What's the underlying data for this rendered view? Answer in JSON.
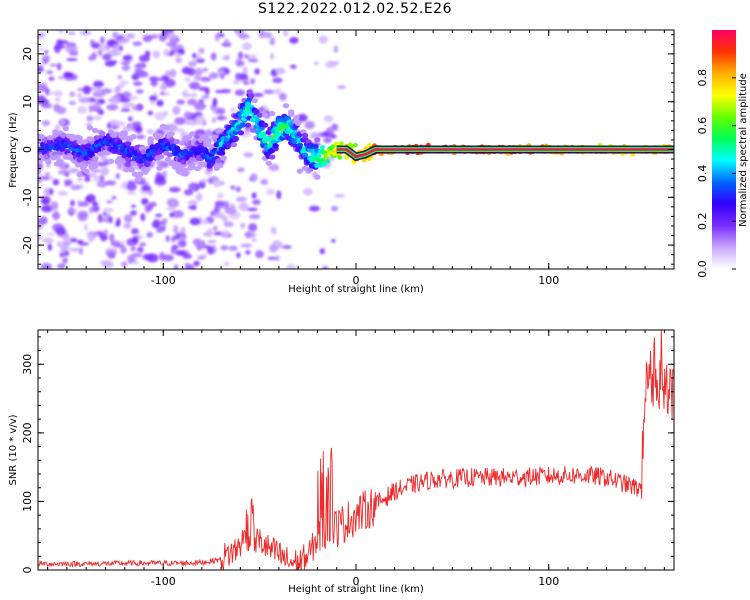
{
  "figure": {
    "title": "S122.2022.012.02.52.E26"
  },
  "chart_data": [
    {
      "type": "heatmap",
      "xlabel": "Height of straight line (km)",
      "ylabel": "Frequency (Hz)",
      "xlim": [
        -165,
        165
      ],
      "ylim": [
        -25,
        25
      ],
      "xticks": [
        -100,
        0,
        100
      ],
      "yticks": [
        -20,
        -10,
        0,
        10,
        20
      ],
      "colorbar": {
        "label": "Normalized spectral amplitude",
        "range": [
          0,
          1
        ],
        "ticks": [
          "0.0",
          "0.2",
          "0.4",
          "0.6",
          "0.8"
        ],
        "tick_values": [
          0.0,
          0.2,
          0.4,
          0.6,
          0.8
        ],
        "colors": [
          "#ffffff",
          "#c9a6ff",
          "#7a2cff",
          "#3300ff",
          "#0066ff",
          "#00ffff",
          "#00ff55",
          "#66ff00",
          "#ffff00",
          "#ffb000",
          "#ff3300",
          "#ff0066"
        ]
      },
      "ridge": {
        "x": [
          -165,
          -150,
          -140,
          -130,
          -120,
          -110,
          -100,
          -90,
          -80,
          -75,
          -70,
          -65,
          -60,
          -55,
          -50,
          -45,
          -40,
          -35,
          -30,
          -25,
          -20,
          -15,
          -10,
          -5,
          0,
          5,
          10,
          20,
          40,
          60,
          80,
          100,
          120,
          140,
          165
        ],
        "y": [
          0,
          1,
          -1,
          2,
          0,
          -2,
          1,
          -1,
          0,
          -2,
          1,
          3,
          6,
          9,
          4,
          1,
          4,
          5,
          2,
          -1,
          -2,
          -1,
          0,
          0,
          -1.5,
          -1,
          0,
          0,
          0,
          0,
          0,
          0,
          0,
          0,
          0
        ],
        "peak_amplitude": [
          0.3,
          0.35,
          0.35,
          0.35,
          0.35,
          0.35,
          0.35,
          0.35,
          0.35,
          0.4,
          0.45,
          0.45,
          0.5,
          0.55,
          0.5,
          0.55,
          0.6,
          0.55,
          0.45,
          0.5,
          0.6,
          0.7,
          0.8,
          0.85,
          0.9,
          0.9,
          0.95,
          0.95,
          1.0,
          0.95,
          0.95,
          0.9,
          0.85,
          0.85,
          0.85
        ]
      }
    },
    {
      "type": "line",
      "xlabel": "Height of straight line (km)",
      "ylabel": "SNR (10 * v/v)",
      "xlim": [
        -165,
        165
      ],
      "ylim": [
        0,
        350
      ],
      "xticks": [
        -100,
        0,
        100
      ],
      "yticks": [
        0,
        100,
        200,
        300
      ],
      "color": "#ee2a2a",
      "series": [
        {
          "x": [
            -165,
            -140,
            -110,
            -90,
            -80,
            -75,
            -70,
            -62,
            -57,
            -50,
            -45,
            -40,
            -35,
            -30,
            -25,
            -20,
            -15,
            -10,
            0,
            10,
            20,
            30,
            40,
            60,
            80,
            100,
            110,
            120,
            130,
            140,
            145,
            148,
            150,
            155,
            160,
            165
          ],
          "y": [
            9,
            9,
            10,
            10,
            11,
            13,
            16,
            30,
            50,
            42,
            30,
            22,
            12,
            10,
            20,
            45,
            65,
            62,
            80,
            95,
            115,
            125,
            132,
            135,
            135,
            137,
            138,
            138,
            135,
            125,
            120,
            120,
            270,
            275,
            270,
            255
          ]
        }
      ]
    }
  ]
}
